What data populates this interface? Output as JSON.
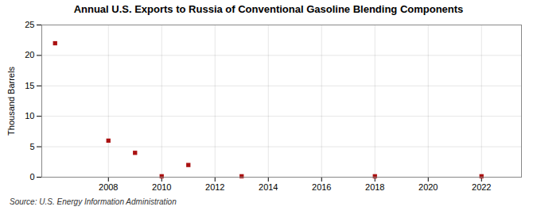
{
  "chart_data": {
    "type": "scatter",
    "title": "Annual U.S. Exports to Russia of Conventional Gasoline Blending Components",
    "ylabel": "Thousand Barrels",
    "source": "Source: U.S. Energy Information Administration",
    "x": [
      2006,
      2008,
      2009,
      2010,
      2011,
      2013,
      2018,
      2022
    ],
    "values": [
      22,
      6,
      4,
      0.15,
      2,
      0.15,
      0.15,
      0.15
    ],
    "color": "#aa1111",
    "marker": "square",
    "xlim": [
      2005.5,
      2023.5
    ],
    "xticks": [
      2008,
      2010,
      2012,
      2014,
      2016,
      2018,
      2020,
      2022
    ],
    "ylim": [
      0,
      25
    ],
    "yticks": [
      0,
      5,
      10,
      15,
      20,
      25
    ],
    "grid": true
  }
}
